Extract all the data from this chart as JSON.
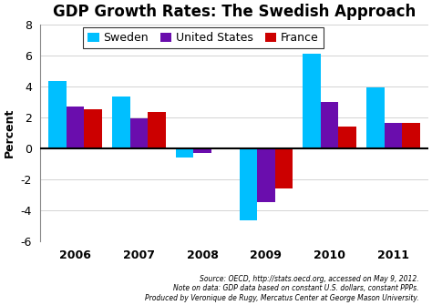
{
  "title": "GDP Growth Rates: The Swedish Approach",
  "years": [
    2006,
    2007,
    2008,
    2009,
    2010,
    2011
  ],
  "sweden": [
    4.3,
    3.3,
    -0.6,
    -4.7,
    6.1,
    3.9
  ],
  "united_states": [
    2.7,
    1.9,
    -0.3,
    -3.5,
    3.0,
    1.6
  ],
  "france": [
    2.5,
    2.3,
    0.0,
    -2.6,
    1.4,
    1.6
  ],
  "colors": {
    "sweden": "#00BFFF",
    "united_states": "#6A0DAD",
    "france": "#CC0000"
  },
  "ylabel": "Percent",
  "ylim": [
    -6,
    8
  ],
  "yticks": [
    -6,
    -4,
    -2,
    0,
    2,
    4,
    6,
    8
  ],
  "bar_width": 0.28,
  "legend_labels": [
    "Sweden",
    "United States",
    "France"
  ],
  "footnote_line1": "Source: OECD, http://stats.oecd.org, accessed on May 9, 2012.",
  "footnote_line2": "Note on data: GDP data based on constant U.S. dollars, constant PPPs.",
  "footnote_line3": "Produced by Veronique de Rugy, Mercatus Center at George Mason University.",
  "background_color": "#FFFFFF",
  "title_fontsize": 12,
  "axis_fontsize": 9,
  "tick_fontsize": 9,
  "footnote_fontsize": 5.5
}
